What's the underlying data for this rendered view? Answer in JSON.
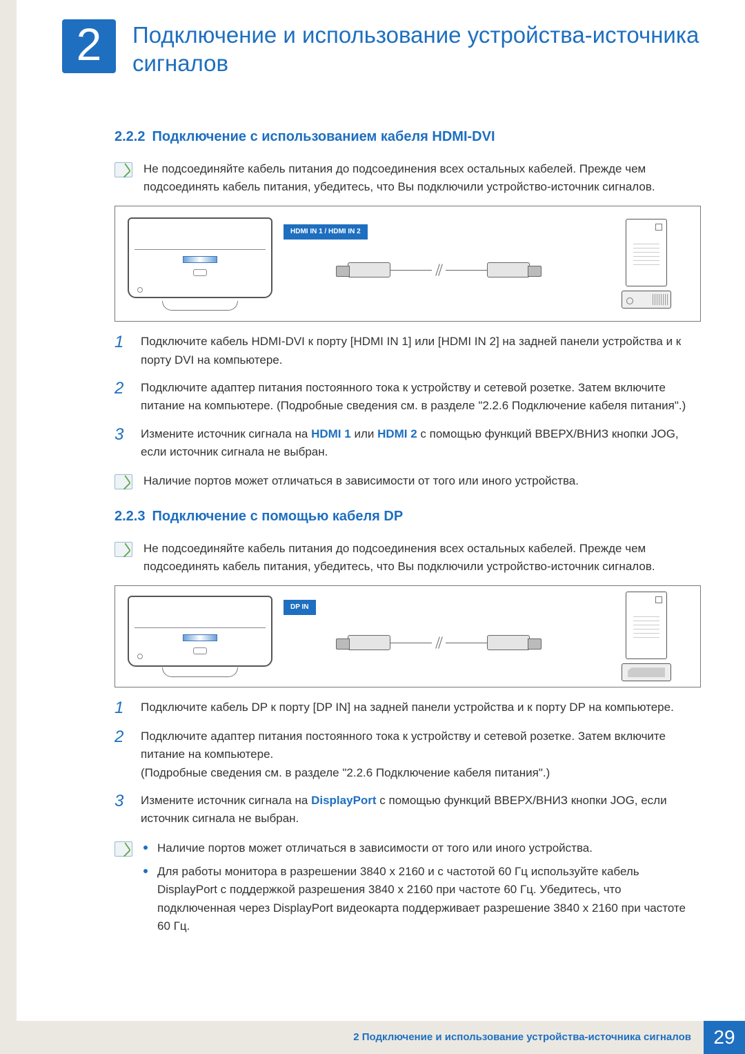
{
  "chapter": {
    "number": "2",
    "title": "Подключение и использование устройства-источника сигналов"
  },
  "colors": {
    "accent": "#1e6fc0",
    "text": "#333333",
    "stripe": "#ebe8e2",
    "note_border": "#9db9cf",
    "note_bg": "#eef3f6",
    "note_check": "#5fa84d"
  },
  "section_222": {
    "number": "2.2.2",
    "title": "Подключение с использованием кабеля HDMI-DVI",
    "note_top": "Не подсоединяйте кабель питания до подсоединения всех остальных кабелей. Прежде чем подсоединять кабель питания, убедитесь, что Вы подключили устройство-источник сигналов.",
    "port_label": "HDMI IN 1 / HDMI IN 2",
    "steps": [
      "Подключите кабель HDMI-DVI к порту [HDMI IN 1] или [HDMI IN 2] на задней панели устройства и к порту DVI на компьютере.",
      "Подключите адаптер питания постоянного тока к устройству и сетевой розетке. Затем включите питание на компьютере. (Подробные сведения см. в разделе \"2.2.6    Подключение кабеля питания\".)",
      "Измените источник сигнала на |HDMI 1| или |HDMI 2| с помощью функций ВВЕРХ/ВНИЗ кнопки JOG, если источник сигнала не выбран."
    ],
    "note_bottom": "Наличие портов может отличаться в зависимости от того или иного устройства."
  },
  "section_223": {
    "number": "2.2.3",
    "title": "Подключение с помощью кабеля DP",
    "note_top": "Не подсоединяйте кабель питания до подсоединения всех остальных кабелей. Прежде чем подсоединять кабель питания, убедитесь, что Вы подключили устройство-источник сигналов.",
    "port_label": "DP IN",
    "steps": [
      "Подключите кабель DP к порту [DP IN] на задней панели устройства и к порту DP на компьютере.",
      "Подключите адаптер питания постоянного тока к устройству и сетевой розетке. Затем включите питание на компьютере.\n(Подробные сведения см. в разделе \"2.2.6    Подключение кабеля питания\".)",
      "Измените источник сигнала на |DisplayPort| с помощью функций ВВЕРХ/ВНИЗ кнопки JOG, если источник сигнала не выбран."
    ],
    "note_bullets": [
      "Наличие портов может отличаться в зависимости от того или иного устройства.",
      "Для работы монитора в разрешении 3840 x 2160 и с частотой 60 Гц используйте кабель DisplayPort с поддержкой разрешения 3840 x 2160 при частоте 60 Гц. Убедитесь, что подключенная через DisplayPort видеокарта поддерживает разрешение 3840 x 2160 при частоте 60 Гц."
    ]
  },
  "footer": {
    "text": "2 Подключение и использование устройства-источника сигналов",
    "page": "29"
  }
}
